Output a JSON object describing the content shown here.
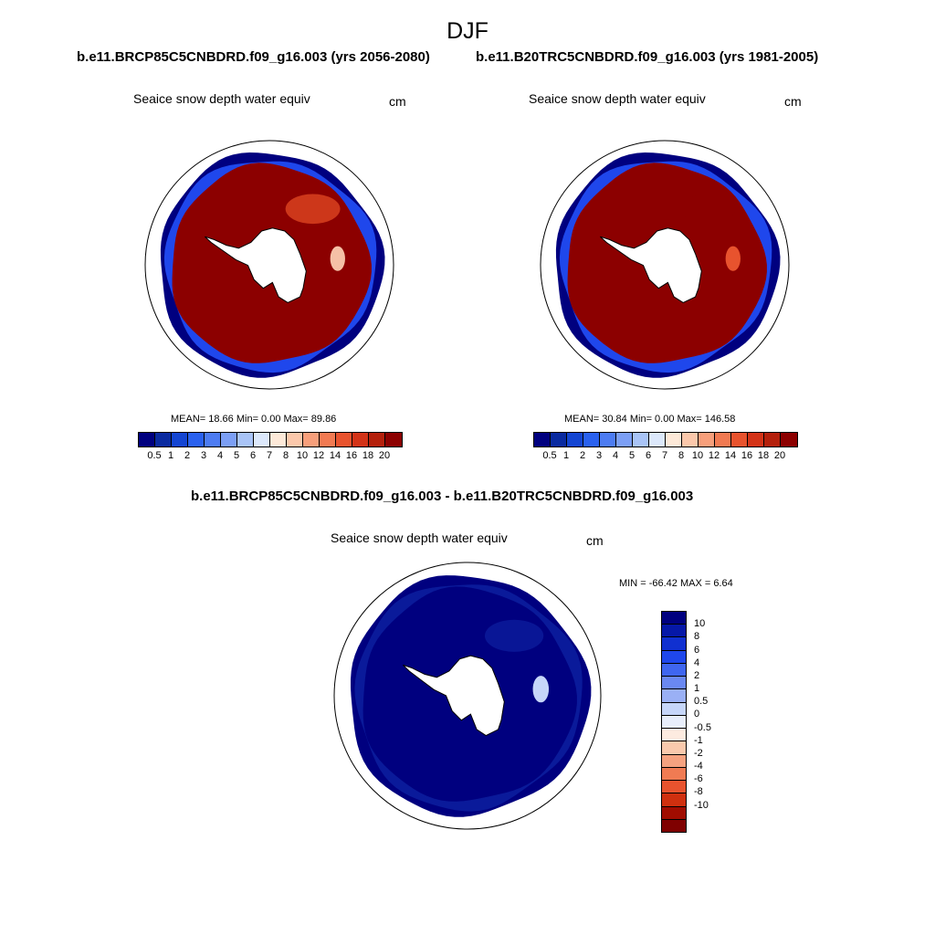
{
  "title": "DJF",
  "top_left": {
    "caption": "b.e11.BRCP85C5CNBDRD.f09_g16.003 (yrs 2056-2080)",
    "variable": "Seaice snow depth water equiv",
    "units": "cm",
    "stats": "MEAN=  18.66  Min=   0.00  Max=  89.86",
    "palette": "abs"
  },
  "top_right": {
    "caption": "b.e11.B20TRC5CNBDRD.f09_g16.003 (yrs 1981-2005)",
    "variable": "Seaice snow depth water equiv",
    "units": "cm",
    "stats": "MEAN=  30.84  Min=   0.00  Max= 146.58",
    "palette": "abs"
  },
  "bottom": {
    "caption": "b.e11.BRCP85C5CNBDRD.f09_g16.003 - b.e11.B20TRC5CNBDRD.f09_g16.003",
    "variable": "Seaice snow depth water equiv",
    "units": "cm",
    "stats": "MIN = -66.42 MAX =   6.64",
    "palette": "diff"
  },
  "colorbar_abs": {
    "colors": [
      "#00007f",
      "#0a2aa0",
      "#1445d2",
      "#2a61ef",
      "#4d7cf2",
      "#7c9ff5",
      "#a9c4f7",
      "#dce8fb",
      "#fde9d8",
      "#fbc8ab",
      "#f79f7b",
      "#f17a52",
      "#e8532e",
      "#d33318",
      "#b4200c",
      "#8c0000"
    ],
    "ticks": [
      "0.5",
      "1",
      "2",
      "3",
      "4",
      "5",
      "6",
      "7",
      "8",
      "10",
      "12",
      "14",
      "16",
      "18",
      "20"
    ]
  },
  "colorbar_diff": {
    "colors": [
      "#00007f",
      "#0618a8",
      "#1030d0",
      "#1f47ec",
      "#3f66f0",
      "#6a88f2",
      "#9ab0f5",
      "#c6d6f9",
      "#e8eefb",
      "#fdebe0",
      "#f9c9ad",
      "#f5a280",
      "#f07b53",
      "#e8532e",
      "#cf300f",
      "#a00c00",
      "#7f0000"
    ],
    "ticks": [
      "10",
      "8",
      "6",
      "4",
      "2",
      "1",
      "0.5",
      "0",
      "-0.5",
      "-1",
      "-2",
      "-4",
      "-6",
      "-8",
      "-10"
    ]
  },
  "fields": {
    "top_left": {
      "ring": "#8c0000",
      "ring_secondary": "#d8411e",
      "edge": "#1f47ec",
      "outer": "#00007f",
      "patch": "#f5c0a6"
    },
    "top_right": {
      "ring": "#8c0000",
      "ring_secondary": "#8c0000",
      "edge": "#1f47ec",
      "outer": "#00007f",
      "patch": "#e8532e"
    },
    "bottom": {
      "ring": "#00007f",
      "ring_secondary": "#0a1a9a",
      "edge": "#0a1a9a",
      "outer": "#00007f",
      "patch": "#c6d6f9"
    }
  }
}
